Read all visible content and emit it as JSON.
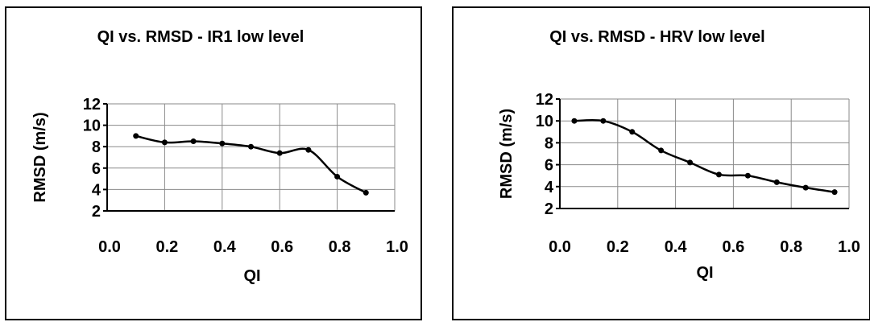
{
  "chart_data": [
    {
      "type": "line",
      "title": "QI  vs.  RMSD - IR1 low level",
      "xlabel": "QI",
      "ylabel": "RMSD (m/s)",
      "xlim": [
        0.0,
        1.0
      ],
      "ylim": [
        2,
        12
      ],
      "xticks": [
        "0.0",
        "0.2",
        "0.4",
        "0.6",
        "0.8",
        "1.0"
      ],
      "yticks": [
        "2",
        "4",
        "6",
        "8",
        "10",
        "12"
      ],
      "grid": true,
      "series": [
        {
          "color": "#000000",
          "x": [
            0.1,
            0.2,
            0.3,
            0.4,
            0.5,
            0.6,
            0.7,
            0.8,
            0.9
          ],
          "y": [
            9.0,
            8.4,
            8.5,
            8.3,
            8.0,
            7.4,
            7.7,
            5.2,
            3.7
          ]
        }
      ]
    },
    {
      "type": "line",
      "title": "QI vs. RMSD - HRV low level",
      "xlabel": "QI",
      "ylabel": "RMSD (m/s)",
      "xlim": [
        0.0,
        1.0
      ],
      "ylim": [
        2,
        12
      ],
      "xticks": [
        "0.0",
        "0.2",
        "0.4",
        "0.6",
        "0.8",
        "1.0"
      ],
      "yticks": [
        "2",
        "4",
        "6",
        "8",
        "10",
        "12"
      ],
      "grid": true,
      "series": [
        {
          "color": "#000000",
          "x": [
            0.05,
            0.15,
            0.25,
            0.35,
            0.45,
            0.55,
            0.65,
            0.75,
            0.85,
            0.95
          ],
          "y": [
            10.0,
            10.0,
            9.0,
            7.3,
            6.2,
            5.1,
            5.0,
            4.4,
            3.9,
            3.5
          ]
        }
      ]
    }
  ]
}
